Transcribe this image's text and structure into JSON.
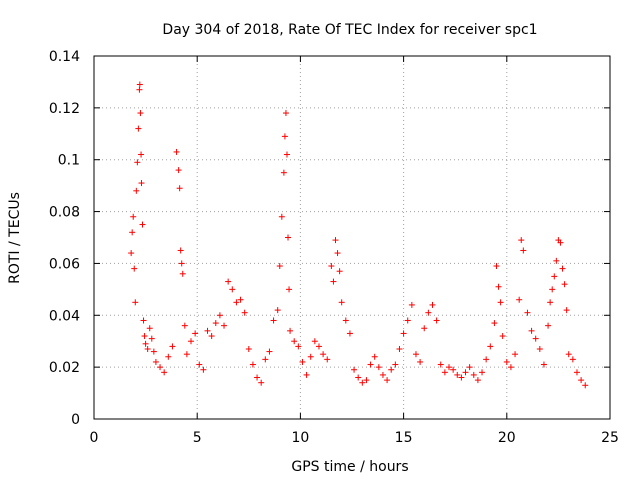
{
  "chart_data": {
    "type": "scatter",
    "title": "Day 304 of 2018, Rate Of TEC Index for receiver spc1",
    "xlabel": "GPS time / hours",
    "ylabel": "ROTI / TECUs",
    "xlim": [
      0,
      25
    ],
    "ylim": [
      0,
      0.14
    ],
    "xticks": [
      0,
      5,
      10,
      15,
      20,
      25
    ],
    "yticks": [
      0,
      0.02,
      0.04,
      0.06,
      0.08,
      0.1,
      0.12,
      0.14
    ],
    "xtick_labels": [
      "0",
      "5",
      "10",
      "15",
      "20",
      "25"
    ],
    "ytick_labels": [
      "0",
      "0.02",
      "0.04",
      "0.06",
      "0.08",
      "0.1",
      "0.12",
      "0.14"
    ],
    "grid": true,
    "marker": "+",
    "color": "#ff0000",
    "series": [
      {
        "name": "ROTI",
        "x": [
          1.8,
          1.85,
          1.9,
          1.95,
          2.0,
          2.05,
          2.1,
          2.15,
          2.2,
          2.22,
          2.25,
          2.28,
          2.3,
          2.35,
          2.4,
          2.45,
          2.5,
          2.6,
          2.7,
          2.8,
          2.9,
          3.0,
          3.2,
          3.4,
          3.6,
          3.8,
          4.0,
          4.1,
          4.15,
          4.2,
          4.25,
          4.3,
          4.4,
          4.5,
          4.7,
          4.9,
          5.1,
          5.3,
          5.5,
          5.7,
          5.9,
          6.1,
          6.3,
          6.5,
          6.7,
          6.9,
          7.1,
          7.3,
          7.5,
          7.7,
          7.9,
          8.1,
          8.3,
          8.5,
          8.7,
          8.9,
          9.0,
          9.1,
          9.2,
          9.25,
          9.3,
          9.35,
          9.4,
          9.45,
          9.5,
          9.7,
          9.9,
          10.1,
          10.3,
          10.5,
          10.7,
          10.9,
          11.1,
          11.3,
          11.5,
          11.6,
          11.7,
          11.8,
          11.9,
          12.0,
          12.2,
          12.4,
          12.6,
          12.8,
          13.0,
          13.2,
          13.4,
          13.6,
          13.8,
          14.0,
          14.2,
          14.4,
          14.6,
          14.8,
          15.0,
          15.2,
          15.4,
          15.6,
          15.8,
          16.0,
          16.2,
          16.4,
          16.6,
          16.8,
          17.0,
          17.2,
          17.4,
          17.6,
          17.8,
          18.0,
          18.2,
          18.4,
          18.6,
          18.8,
          19.0,
          19.2,
          19.4,
          19.5,
          19.6,
          19.7,
          19.8,
          20.0,
          20.2,
          20.4,
          20.6,
          20.7,
          20.8,
          21.0,
          21.2,
          21.4,
          21.6,
          21.8,
          22.0,
          22.1,
          22.2,
          22.3,
          22.4,
          22.5,
          22.6,
          22.7,
          22.8,
          22.9,
          23.0,
          23.2,
          23.4,
          23.6,
          23.8
        ],
        "y": [
          0.064,
          0.072,
          0.078,
          0.058,
          0.045,
          0.088,
          0.099,
          0.112,
          0.127,
          0.129,
          0.118,
          0.102,
          0.091,
          0.075,
          0.038,
          0.032,
          0.029,
          0.027,
          0.035,
          0.031,
          0.026,
          0.022,
          0.02,
          0.018,
          0.024,
          0.028,
          0.103,
          0.096,
          0.089,
          0.065,
          0.06,
          0.056,
          0.036,
          0.025,
          0.03,
          0.033,
          0.021,
          0.019,
          0.034,
          0.032,
          0.037,
          0.04,
          0.036,
          0.053,
          0.05,
          0.045,
          0.046,
          0.041,
          0.027,
          0.021,
          0.016,
          0.014,
          0.023,
          0.026,
          0.038,
          0.042,
          0.059,
          0.078,
          0.095,
          0.109,
          0.118,
          0.102,
          0.07,
          0.05,
          0.034,
          0.03,
          0.028,
          0.022,
          0.017,
          0.024,
          0.03,
          0.028,
          0.025,
          0.023,
          0.059,
          0.053,
          0.069,
          0.064,
          0.057,
          0.045,
          0.038,
          0.033,
          0.019,
          0.016,
          0.014,
          0.015,
          0.021,
          0.024,
          0.02,
          0.017,
          0.015,
          0.019,
          0.021,
          0.027,
          0.033,
          0.038,
          0.044,
          0.025,
          0.022,
          0.035,
          0.041,
          0.044,
          0.038,
          0.021,
          0.018,
          0.02,
          0.019,
          0.017,
          0.016,
          0.018,
          0.02,
          0.017,
          0.015,
          0.018,
          0.023,
          0.028,
          0.037,
          0.059,
          0.051,
          0.045,
          0.032,
          0.022,
          0.02,
          0.025,
          0.046,
          0.069,
          0.065,
          0.041,
          0.034,
          0.031,
          0.027,
          0.021,
          0.036,
          0.045,
          0.05,
          0.055,
          0.061,
          0.069,
          0.068,
          0.058,
          0.052,
          0.042,
          0.025,
          0.023,
          0.018,
          0.015,
          0.013
        ]
      }
    ]
  }
}
